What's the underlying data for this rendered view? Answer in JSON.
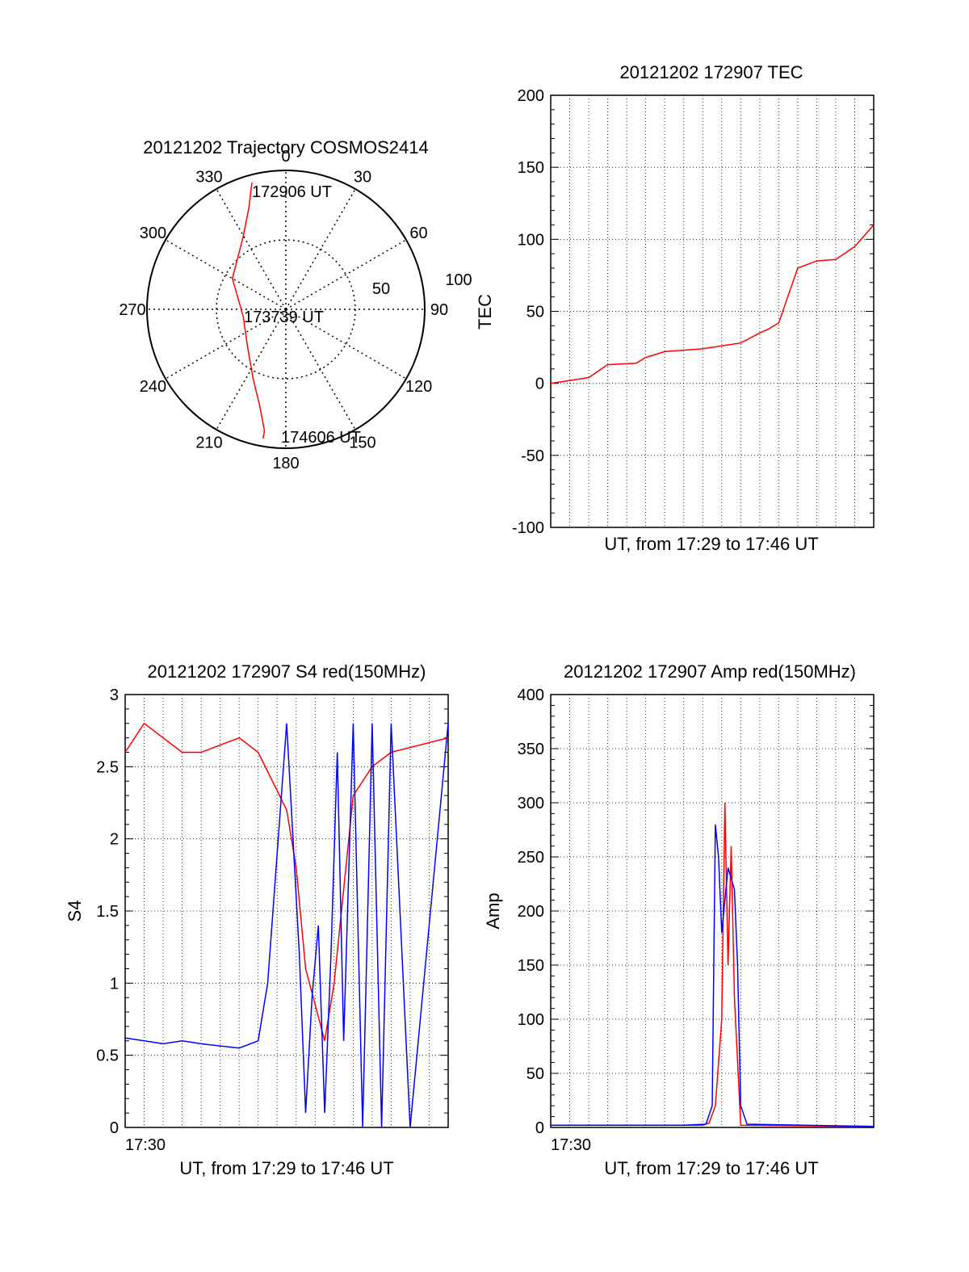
{
  "colors": {
    "red": "#ff0000",
    "blue": "#0000ff",
    "axis": "#000000",
    "grid": "#000000"
  },
  "chart_data": [
    {
      "id": "trajectory",
      "type": "scatter",
      "projection": "polar",
      "title": "20121202 Trajectory COSMOS2414",
      "azimuth_labels": [
        "0",
        "30",
        "60",
        "90",
        "120",
        "150",
        "180",
        "210",
        "240",
        "270",
        "300",
        "330"
      ],
      "radial_labels": [
        "50",
        "100"
      ],
      "elevation_range": [
        0,
        90
      ],
      "grid": true,
      "series": [
        {
          "color": "#ff0000",
          "points": [
            {
              "az": 345,
              "el": 5
            },
            {
              "az": 340,
              "el": 20
            },
            {
              "az": 330,
              "el": 35
            },
            {
              "az": 300,
              "el": 50
            },
            {
              "az": 260,
              "el": 62
            },
            {
              "az": 225,
              "el": 55
            },
            {
              "az": 205,
              "el": 40
            },
            {
              "az": 195,
              "el": 25
            },
            {
              "az": 190,
              "el": 10
            },
            {
              "az": 190,
              "el": 5
            }
          ]
        }
      ],
      "annotations": [
        {
          "text": "172906 UT",
          "az": 345,
          "el": 5
        },
        {
          "text": "173739 UT",
          "az": 180,
          "el": 90
        },
        {
          "text": "174606 UT",
          "az": 190,
          "el": 5
        }
      ]
    },
    {
      "id": "tec",
      "type": "line",
      "title": "20121202 172907 TEC",
      "xlabel": "UT, from 17:29 to 17:46 UT",
      "ylabel": "TEC",
      "xlim": [
        "17:29",
        "17:46"
      ],
      "ylim": [
        -100,
        200
      ],
      "yticks": [
        "200",
        "150",
        "100",
        "50",
        "0",
        "-50",
        "-100"
      ],
      "grid": true,
      "series": [
        {
          "color": "#ff0000",
          "x": [
            "17:29:00",
            "17:31:00",
            "17:32:00",
            "17:33:30",
            "17:34:00",
            "17:35:00",
            "17:36:00",
            "17:37:00",
            "17:38:00",
            "17:39:00",
            "17:40:00",
            "17:40:30",
            "17:41:00",
            "17:42:00",
            "17:43:00",
            "17:44:00",
            "17:45:00",
            "17:46:00"
          ],
          "y": [
            0,
            4,
            13,
            14,
            18,
            22,
            23,
            24,
            26,
            28,
            35,
            38,
            42,
            80,
            85,
            86,
            95,
            110
          ]
        }
      ]
    },
    {
      "id": "s4",
      "type": "line",
      "title": "20121202 172907 S4 red(150MHz)",
      "xlabel": "UT, from 17:29 to 17:46 UT",
      "ylabel": "S4",
      "xtick": "17:30",
      "xlim": [
        "17:29",
        "17:46"
      ],
      "ylim": [
        0,
        3
      ],
      "yticks": [
        "3",
        "2.5",
        "2",
        "1.5",
        "1",
        "0.5",
        "0"
      ],
      "grid": true,
      "series": [
        {
          "color": "#ff0000",
          "x": [
            "17:29:00",
            "17:30:00",
            "17:31:00",
            "17:32:00",
            "17:33:00",
            "17:35:00",
            "17:36:00",
            "17:37:30",
            "17:38:00",
            "17:38:30",
            "17:39:30",
            "17:40:00",
            "17:41:00",
            "17:42:00",
            "17:43:00",
            "17:46:00"
          ],
          "y": [
            2.6,
            2.8,
            2.7,
            2.6,
            2.6,
            2.7,
            2.6,
            2.2,
            1.8,
            1.1,
            0.6,
            1.0,
            2.3,
            2.5,
            2.6,
            2.7
          ]
        },
        {
          "color": "#0000ff",
          "x": [
            "17:29:00",
            "17:30:00",
            "17:31:00",
            "17:32:00",
            "17:33:00",
            "17:35:00",
            "17:36:00",
            "17:36:30",
            "17:37:30",
            "17:38:10",
            "17:38:30",
            "17:38:50",
            "17:39:10",
            "17:39:30",
            "17:39:50",
            "17:40:10",
            "17:40:30",
            "17:41:00",
            "17:41:30",
            "17:42:00",
            "17:42:30",
            "17:43:00",
            "17:44:00",
            "17:46:00"
          ],
          "y": [
            0.62,
            0.6,
            0.58,
            0.6,
            0.58,
            0.55,
            0.6,
            1.0,
            2.8,
            1.2,
            0.1,
            0.9,
            1.4,
            0.1,
            1.2,
            2.6,
            0.6,
            2.8,
            0.0,
            2.8,
            0.0,
            2.8,
            0.0,
            2.8
          ]
        }
      ]
    },
    {
      "id": "amp",
      "type": "line",
      "title": "20121202 172907 Amp red(150MHz)",
      "xlabel": "UT, from 17:29 to 17:46 UT",
      "ylabel": "Amp",
      "xtick": "17:30",
      "xlim": [
        "17:29",
        "17:46"
      ],
      "ylim": [
        0,
        400
      ],
      "yticks": [
        "400",
        "350",
        "300",
        "250",
        "200",
        "150",
        "100",
        "50",
        "0"
      ],
      "grid": true,
      "series": [
        {
          "color": "#ff0000",
          "x": [
            "17:29:00",
            "17:37:00",
            "17:37:20",
            "17:37:40",
            "17:38:00",
            "17:38:10",
            "17:38:20",
            "17:38:30",
            "17:38:40",
            "17:39:00",
            "17:46:00"
          ],
          "y": [
            2,
            2,
            4,
            20,
            100,
            300,
            150,
            260,
            120,
            2,
            1
          ]
        },
        {
          "color": "#0000ff",
          "x": [
            "17:29:00",
            "17:36:00",
            "17:37:10",
            "17:37:30",
            "17:37:40",
            "17:37:50",
            "17:38:00",
            "17:38:20",
            "17:38:40",
            "17:38:50",
            "17:39:00",
            "17:39:20",
            "17:46:00"
          ],
          "y": [
            2,
            2,
            3,
            20,
            280,
            250,
            180,
            240,
            220,
            150,
            20,
            3,
            1
          ]
        }
      ]
    }
  ]
}
